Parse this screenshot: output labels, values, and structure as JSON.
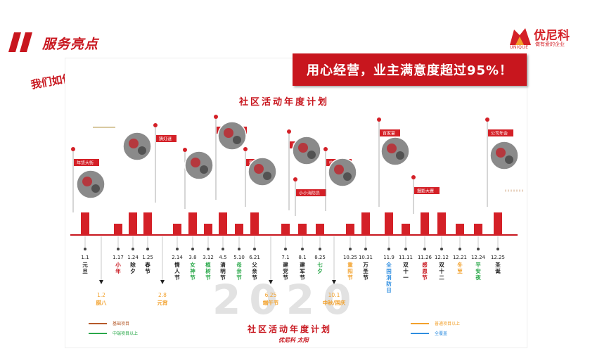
{
  "header": {
    "title": "服务亮点"
  },
  "logo": {
    "name": "优尼科",
    "english": "UNIQUE",
    "slogan": "做有爱的企业"
  },
  "question": "我们如何经营社区文化？",
  "banner": "用心经营，业主满意度超过95%！",
  "poster": {
    "title": "社区活动年度计划",
    "footer": "社区活动年度计划",
    "year": "2020",
    "brand": "优尼科 太阳"
  },
  "colors": {
    "accent": "#c8161e",
    "orange": "#f2a12c",
    "green": "#2aa84a",
    "blue": "#2f8ee0",
    "brown": "#b55a2a"
  },
  "legend": {
    "basic": {
      "label": "基础项目",
      "color": "#b55a2a"
    },
    "mid": {
      "label": "中端项目以上",
      "color": "#2aa84a"
    },
    "normal": {
      "label": "普通项目以上",
      "color": "#f2a12c"
    },
    "all": {
      "label": "全覆盖",
      "color": "#2f8ee0"
    }
  },
  "chart_data": {
    "type": "bar",
    "categories": [
      "1.1",
      "1.17",
      "1.24",
      "1.25",
      "2.14",
      "3.8",
      "3.12",
      "4.5",
      "5.10",
      "6.21",
      "7.1",
      "8.1",
      "8.25",
      "10.25",
      "10.31",
      "11.9",
      "11.11",
      "11.26",
      "12.12",
      "12.21",
      "12.24",
      "12.25"
    ],
    "values": [
      2,
      1,
      2,
      2,
      1,
      2,
      1,
      2,
      1,
      2,
      1,
      1,
      1,
      1,
      2,
      2,
      1,
      2,
      2,
      1,
      1,
      2
    ],
    "holiday_names": [
      "元旦",
      "小年",
      "除夕",
      "春节",
      "情人节",
      "女神节",
      "植树节",
      "清明节",
      "母亲节",
      "父亲节",
      "建党节",
      "建军节",
      "七夕",
      "重阳节",
      "万圣节",
      "全国消防日",
      "双十一",
      "感恩节",
      "双十二",
      "冬至",
      "平安夜",
      "圣诞"
    ],
    "holiday_colors": [
      "#222222",
      "#c8161e",
      "#222222",
      "#222222",
      "#222222",
      "#2aa84a",
      "#2aa84a",
      "#222222",
      "#2aa84a",
      "#222222",
      "#222222",
      "#222222",
      "#2aa84a",
      "#f2a12c",
      "#222222",
      "#2f8ee0",
      "#222222",
      "#c8161e",
      "#222222",
      "#f2a12c",
      "#2aa84a",
      "#222222"
    ],
    "bottom_dates": [
      "1.2",
      "2.8",
      "6.25",
      "10.1"
    ],
    "bottom_names": [
      "腊八",
      "元宵",
      "端午节",
      "中秋/国庆"
    ],
    "events": [
      "年货大街",
      "猜灯谜",
      "摄影大赛",
      "亲子运动会",
      "赛龙舟",
      "篮球赛",
      "小小消防员",
      "中秋晚会",
      "百家宴",
      "摄影大赛",
      "公司年会"
    ]
  }
}
